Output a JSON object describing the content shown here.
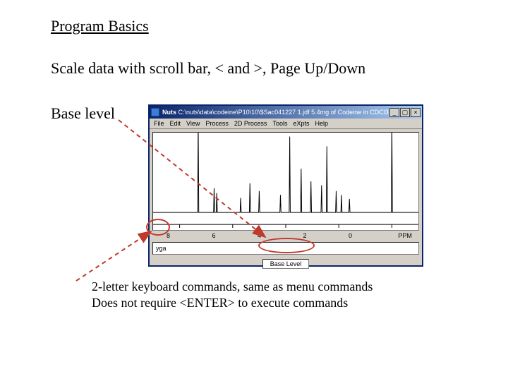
{
  "heading": "Program Basics",
  "subheading": "Scale data with scroll bar, < and >, Page Up/Down",
  "base_level_label": "Base level",
  "footnote_line1": "2-letter keyboard commands, same as menu commands",
  "footnote_line2": "Does not require <ENTER> to execute commands",
  "window": {
    "title_prefix": "Nuts",
    "title_path": "C:\\nuts\\data\\codeine\\P10\\10\\$Sac041227 1.jdf   5.4mg of Codeine in CDCl3",
    "min_btn": "_",
    "max_btn": "▢",
    "close_btn": "×",
    "menu": [
      "File",
      "Edit",
      "View",
      "Process",
      "2D Process",
      "Tools",
      "eXpts",
      "Help"
    ],
    "cmd_text": "yga",
    "status_label": "Base Level",
    "axis": {
      "ticks": [
        "8",
        "6",
        "4",
        "2",
        "0"
      ],
      "unit": "PPM"
    }
  },
  "spectrum": {
    "type": "line",
    "background_color": "#ffffff",
    "line_color": "#000000",
    "line_width": 1,
    "xlim_ppm": [
      9,
      -1
    ],
    "ylim": [
      0,
      100
    ],
    "baseline_y": 82,
    "peaks_ppm": [
      {
        "ppm": 7.3,
        "h": 95
      },
      {
        "ppm": 6.7,
        "h": 25
      },
      {
        "ppm": 6.6,
        "h": 20
      },
      {
        "ppm": 5.7,
        "h": 15
      },
      {
        "ppm": 5.35,
        "h": 30
      },
      {
        "ppm": 5.0,
        "h": 22
      },
      {
        "ppm": 4.2,
        "h": 18
      },
      {
        "ppm": 3.85,
        "h": 78
      },
      {
        "ppm": 3.42,
        "h": 45
      },
      {
        "ppm": 3.05,
        "h": 32
      },
      {
        "ppm": 2.65,
        "h": 28
      },
      {
        "ppm": 2.45,
        "h": 68
      },
      {
        "ppm": 2.1,
        "h": 22
      },
      {
        "ppm": 1.9,
        "h": 18
      },
      {
        "ppm": 1.6,
        "h": 14
      },
      {
        "ppm": 0.0,
        "h": 92
      }
    ]
  },
  "annotations": {
    "ellipse_color": "#c0392b",
    "arrow_color": "#c0392b",
    "arrow_dash": "6,5",
    "arrow_width": 2,
    "arrow1": {
      "from": [
        168,
        170
      ],
      "to": [
        376,
        336
      ]
    },
    "arrow2": {
      "from": [
        108,
        398
      ],
      "to": [
        214,
        328
      ]
    }
  }
}
